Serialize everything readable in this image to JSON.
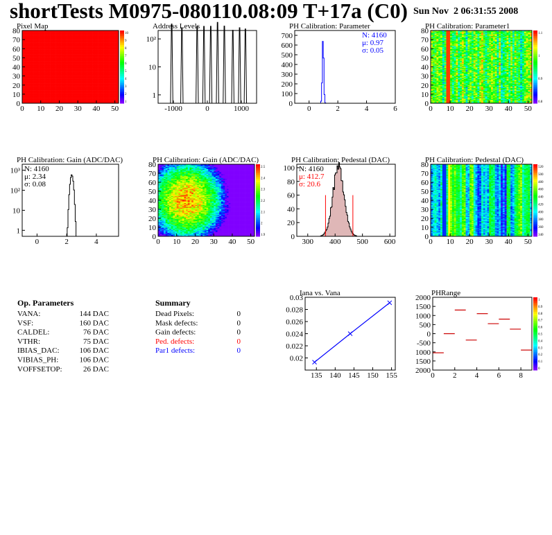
{
  "header": {
    "title": "shortTests M0975-080110.08:09 T+17a (C0)",
    "date": "Sun Nov  2 06:31:55 2008"
  },
  "colors": {
    "red": "#ff0000",
    "blue": "#0000ff",
    "axis": "#000000",
    "pedestal_fill": "#c07070"
  },
  "op_parameters": {
    "heading": "Op. Parameters",
    "rows": [
      {
        "name": "VANA:",
        "value": "144 DAC"
      },
      {
        "name": "VSF:",
        "value": "160 DAC"
      },
      {
        "name": "CALDEL:",
        "value": "76 DAC"
      },
      {
        "name": "VTHR:",
        "value": "75 DAC"
      },
      {
        "name": "IBIAS_DAC:",
        "value": "106 DAC"
      },
      {
        "name": "VIBIAS_PH:",
        "value": "106 DAC"
      },
      {
        "name": "VOFFSETOP:",
        "value": "26 DAC"
      }
    ]
  },
  "summary": {
    "heading": "Summary",
    "rows": [
      {
        "name": "Dead Pixels:",
        "value": "0",
        "color": "#000000"
      },
      {
        "name": "Mask defects:",
        "value": "0",
        "color": "#000000"
      },
      {
        "name": "Gain defects:",
        "value": "0",
        "color": "#000000"
      },
      {
        "name": "Ped. defects:",
        "value": "0",
        "color": "#ff0000"
      },
      {
        "name": "Par1 defects:",
        "value": "0",
        "color": "#0000ff"
      }
    ]
  },
  "chart_data": [
    {
      "id": "pixel-map",
      "type": "heatmap",
      "title": "Pixel Map",
      "xlim": [
        0,
        52
      ],
      "ylim": [
        0,
        80
      ],
      "xticks": [
        0,
        10,
        20,
        30,
        40,
        50
      ],
      "yticks": [
        0,
        10,
        20,
        30,
        40,
        50,
        60,
        70,
        80
      ],
      "fill": "uniform red",
      "zticks": [
        "10",
        "9",
        "8",
        "7",
        "6",
        "5",
        "4",
        "3",
        "2",
        "1"
      ]
    },
    {
      "id": "address-levels",
      "type": "bar",
      "title": "Address Levels",
      "xlim": [
        -1450,
        1450
      ],
      "xticks": [
        -1000,
        0,
        1000
      ],
      "log_y": true,
      "yticks": [
        "1",
        "10",
        "10²"
      ],
      "peaks": [
        -1050,
        -750,
        -300,
        -100,
        100,
        300,
        500,
        750,
        950,
        1120
      ]
    },
    {
      "id": "ph-calibration-parameter",
      "type": "bar",
      "title": "PH Calibration: Parameter",
      "xlim": [
        -1,
        6
      ],
      "xticks": [
        0,
        2,
        4,
        6
      ],
      "ylim": [
        0,
        750
      ],
      "yticks": [
        0,
        100,
        200,
        300,
        400,
        500,
        600,
        700
      ],
      "stats": [
        "N: 4160",
        "μ: 0.97",
        "σ: 0.05"
      ],
      "stats_color": "#0000ff",
      "gauss": {
        "mean": 0.97,
        "sigma": 0.05,
        "peak": 700
      }
    },
    {
      "id": "ph-calibration-parameter1",
      "type": "heatmap",
      "title": "PH Calibration: Parameter1",
      "xlim": [
        0,
        52
      ],
      "ylim": [
        0,
        80
      ],
      "xticks": [
        0,
        10,
        20,
        30,
        40,
        50
      ],
      "yticks": [
        0,
        10,
        20,
        30,
        40,
        50,
        60,
        70,
        80
      ],
      "zticks": [
        "1.1",
        "1",
        "0.9",
        "0.8"
      ]
    },
    {
      "id": "ph-calibration-gain-1d",
      "type": "bar",
      "title": "PH Calibration: Gain (ADC/DAC)",
      "xlim": [
        -1,
        5.5
      ],
      "xticks": [
        0,
        2,
        4
      ],
      "log_y": true,
      "yticks": [
        "1",
        "10",
        "10²",
        "10³"
      ],
      "stats": [
        "N: 4160",
        "μ: 2.34",
        "σ: 0.08"
      ],
      "stats_color": "#000000",
      "gauss": {
        "mean": 2.34,
        "sigma": 0.08,
        "peak": 600
      }
    },
    {
      "id": "ph-calibration-gain-map",
      "type": "heatmap",
      "title": "PH Calibration: Gain (ADC/DAC)",
      "xlim": [
        0,
        52
      ],
      "ylim": [
        0,
        80
      ],
      "xticks": [
        0,
        10,
        20,
        30,
        40,
        50
      ],
      "yticks": [
        0,
        10,
        20,
        30,
        40,
        50,
        60,
        70,
        80
      ],
      "zticks": [
        "2.5",
        "2.4",
        "2.3",
        "2.2",
        "2.1",
        "2",
        "1.9"
      ]
    },
    {
      "id": "ph-calibration-pedestal-1d",
      "type": "bar",
      "title": "PH Calibration: Pedestal (DAC)",
      "xlim": [
        260,
        620
      ],
      "xticks": [
        300,
        400,
        500,
        600
      ],
      "ylim": [
        0,
        105
      ],
      "yticks": [
        0,
        20,
        40,
        60,
        80,
        100
      ],
      "stats": [
        "N: 4160",
        "μ: 412.7",
        "σ: 20.6"
      ],
      "stats_color": "#ff0000",
      "gauss": {
        "mean": 412.7,
        "sigma": 20.6,
        "peak": 100
      },
      "cut_lines": [
        365,
        465
      ]
    },
    {
      "id": "ph-calibration-pedestal-map",
      "type": "heatmap",
      "title": "PH Calibration: Pedestal (DAC)",
      "xlim": [
        0,
        52
      ],
      "ylim": [
        0,
        80
      ],
      "xticks": [
        0,
        10,
        20,
        30,
        40,
        50
      ],
      "yticks": [
        0,
        10,
        20,
        30,
        40,
        50,
        60,
        70,
        80
      ],
      "zticks": [
        "520",
        "500",
        "480",
        "460",
        "440",
        "420",
        "400",
        "380",
        "360",
        "340"
      ]
    },
    {
      "id": "iana-vs-vana",
      "type": "line",
      "title": "Iana vs. Vana",
      "xlim": [
        132,
        156
      ],
      "xticks": [
        135,
        140,
        145,
        150,
        155
      ],
      "ylim": [
        0.018,
        0.03
      ],
      "yticks": [
        0.02,
        0.022,
        0.024,
        0.026,
        0.028,
        0.03
      ],
      "x": [
        134.5,
        144,
        154.5
      ],
      "y": [
        0.0193,
        0.024,
        0.0291
      ]
    },
    {
      "id": "ph-range",
      "type": "scatter",
      "title": "PHRange",
      "xlim": [
        0,
        9
      ],
      "xticks": [
        0,
        2,
        4,
        6,
        8
      ],
      "ylim": [
        -2000,
        2000
      ],
      "yticks": [
        2000,
        1500,
        1000,
        500,
        0,
        -500,
        -1000,
        -1500,
        -2000
      ],
      "ytick_labels": [
        "2000",
        "1500",
        "1000",
        "500",
        "0",
        "-500",
        "1000",
        "1500",
        "2000"
      ],
      "x": [
        0.5,
        1.5,
        2.5,
        3.5,
        4.5,
        5.5,
        6.5,
        7.5,
        8.5
      ],
      "y": [
        -1050,
        0,
        1300,
        -350,
        1100,
        550,
        800,
        250,
        -900
      ],
      "zticks": [
        "1",
        "0.9",
        "0.8",
        "0.7",
        "0.6",
        "0.5",
        "0.4",
        "0.3",
        "0.2",
        "0.1",
        "0"
      ]
    }
  ]
}
